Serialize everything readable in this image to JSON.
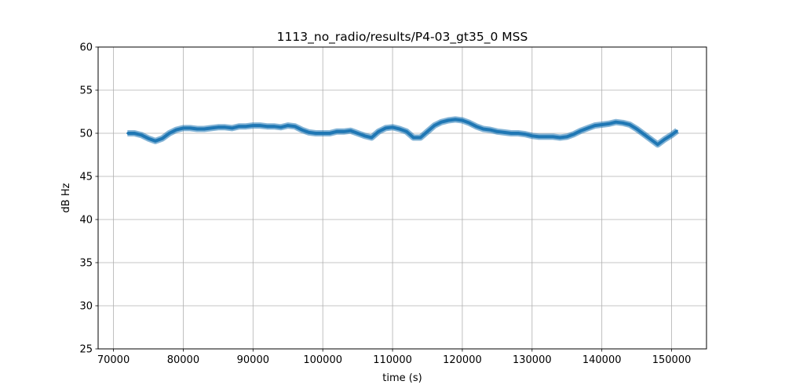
{
  "chart_data": {
    "type": "line",
    "title": "1113_no_radio/results/P4-03_gt35_0 MSS",
    "xlabel": "time (s)",
    "ylabel": "dB Hz",
    "xlim": [
      67800,
      155000
    ],
    "ylim": [
      25,
      60
    ],
    "xticks": [
      70000,
      80000,
      90000,
      100000,
      110000,
      120000,
      130000,
      140000,
      150000
    ],
    "yticks": [
      25,
      30,
      35,
      40,
      45,
      50,
      55,
      60
    ],
    "grid": true,
    "line_color": "#1f77b4",
    "series": [
      {
        "x": [
          72000,
          73000,
          74000,
          75000,
          76000,
          77000,
          78000,
          79000,
          80000,
          81000,
          82000,
          83000,
          84000,
          85000,
          86000,
          87000,
          88000,
          89000,
          90000,
          91000,
          92000,
          93000,
          94000,
          95000,
          96000,
          97000,
          98000,
          99000,
          100000,
          101000,
          102000,
          103000,
          104000,
          105000,
          106000,
          107000,
          108000,
          109000,
          110000,
          111000,
          112000,
          113000,
          114000,
          115000,
          116000,
          117000,
          118000,
          119000,
          120000,
          121000,
          122000,
          123000,
          124000,
          125000,
          126000,
          127000,
          128000,
          129000,
          130000,
          131000,
          132000,
          133000,
          134000,
          135000,
          136000,
          137000,
          138000,
          139000,
          140000,
          141000,
          142000,
          143000,
          144000,
          145000,
          146000,
          147000,
          148000,
          149000,
          150000,
          150800
        ],
        "y": [
          50.0,
          50.0,
          49.8,
          49.4,
          49.1,
          49.4,
          50.0,
          50.4,
          50.6,
          50.6,
          50.5,
          50.5,
          50.6,
          50.7,
          50.7,
          50.6,
          50.8,
          50.8,
          50.9,
          50.9,
          50.8,
          50.8,
          50.7,
          50.9,
          50.8,
          50.4,
          50.1,
          50.0,
          50.0,
          50.0,
          50.2,
          50.2,
          50.3,
          50.0,
          49.7,
          49.5,
          50.2,
          50.6,
          50.7,
          50.5,
          50.2,
          49.5,
          49.5,
          50.2,
          50.9,
          51.3,
          51.5,
          51.6,
          51.5,
          51.2,
          50.8,
          50.5,
          50.4,
          50.2,
          50.1,
          50.0,
          50.0,
          49.9,
          49.7,
          49.6,
          49.6,
          49.6,
          49.5,
          49.6,
          49.9,
          50.3,
          50.6,
          50.9,
          51.0,
          51.1,
          51.3,
          51.2,
          51.0,
          50.5,
          49.9,
          49.3,
          48.7,
          49.3,
          49.8,
          50.3
        ]
      }
    ]
  }
}
